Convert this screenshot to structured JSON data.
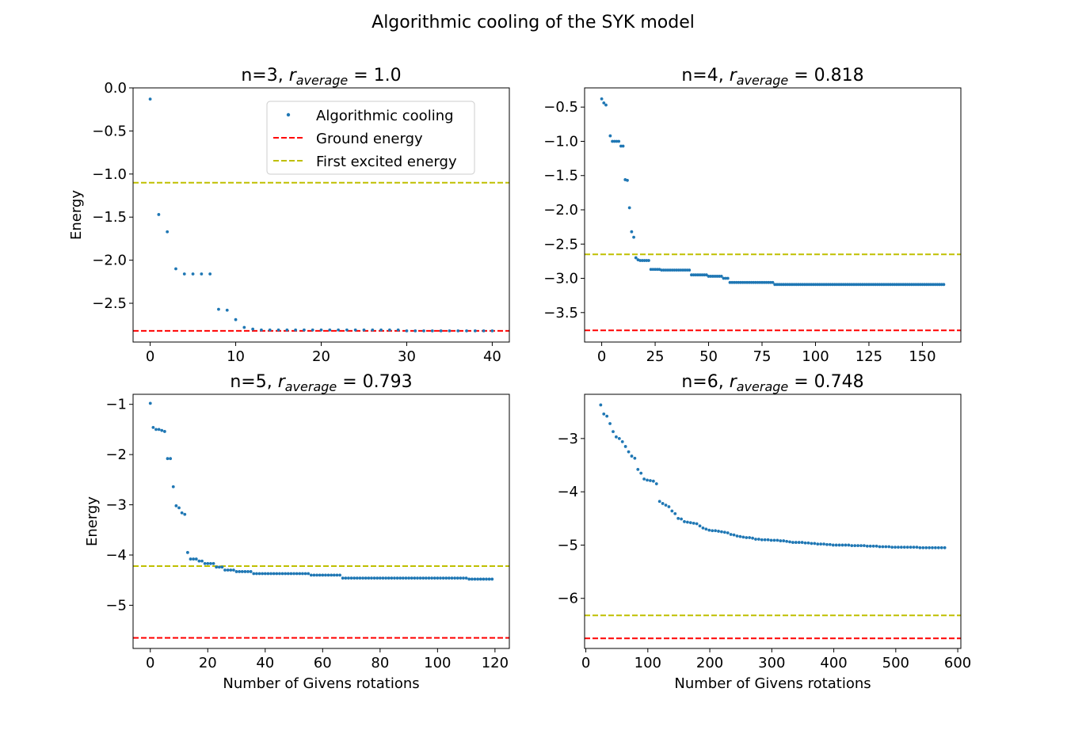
{
  "suptitle": "Algorithmic cooling of the SYK model",
  "legend": {
    "entries": [
      {
        "label": "Algorithmic cooling",
        "kind": "marker",
        "color": "#1f77b4"
      },
      {
        "label": "Ground energy",
        "kind": "dashed",
        "color": "#ff0000"
      },
      {
        "label": "First excited energy",
        "kind": "dashed",
        "color": "#bfbf00"
      }
    ],
    "placement": "upper-right of first panel"
  },
  "chart_data": [
    {
      "type": "scatter",
      "title_prefix": "n=3, ",
      "title_r_sub": "average",
      "title_value": "1.0",
      "xlabel": "",
      "ylabel": "Energy",
      "xlim": [
        -2,
        42
      ],
      "ylim": [
        -2.95,
        0
      ],
      "xticks": [
        0,
        10,
        20,
        30,
        40
      ],
      "yticks": [
        0.0,
        -0.5,
        -1.0,
        -1.5,
        -2.0,
        -2.5
      ],
      "ytick_decimals": 1,
      "ground_energy": -2.82,
      "first_excited_energy": -1.1,
      "x": [
        0,
        1,
        2,
        3,
        4,
        5,
        6,
        7,
        8,
        9,
        10,
        11,
        12,
        13,
        14,
        15,
        16,
        17,
        18,
        19,
        20,
        21,
        22,
        23,
        24,
        25,
        26,
        27,
        28,
        29,
        30,
        31,
        32,
        33,
        34,
        35,
        36,
        37,
        38,
        39,
        40
      ],
      "y": [
        -0.13,
        -1.47,
        -1.67,
        -2.1,
        -2.16,
        -2.16,
        -2.16,
        -2.16,
        -2.57,
        -2.58,
        -2.69,
        -2.78,
        -2.8,
        -2.81,
        -2.81,
        -2.81,
        -2.81,
        -2.81,
        -2.81,
        -2.81,
        -2.81,
        -2.81,
        -2.81,
        -2.81,
        -2.81,
        -2.81,
        -2.81,
        -2.81,
        -2.81,
        -2.81,
        -2.82,
        -2.82,
        -2.82,
        -2.82,
        -2.82,
        -2.82,
        -2.82,
        -2.82,
        -2.82,
        -2.82,
        -2.82
      ]
    },
    {
      "type": "scatter",
      "title_prefix": "n=4, ",
      "title_r_sub": "average",
      "title_value": "0.818",
      "xlabel": "",
      "ylabel": "",
      "xlim": [
        -8,
        168
      ],
      "ylim": [
        -3.93,
        -0.22
      ],
      "xticks": [
        0,
        25,
        50,
        75,
        100,
        125,
        150
      ],
      "yticks": [
        -0.5,
        -1.0,
        -1.5,
        -2.0,
        -2.5,
        -3.0,
        -3.5
      ],
      "ytick_decimals": 1,
      "ground_energy": -3.76,
      "first_excited_energy": -2.65,
      "steps": [
        {
          "from": 0,
          "to": 0,
          "value": -0.38
        },
        {
          "from": 1,
          "to": 1,
          "value": -0.44
        },
        {
          "from": 2,
          "to": 2,
          "value": -0.47
        },
        {
          "from": 4,
          "to": 4,
          "value": -0.92
        },
        {
          "from": 5,
          "to": 8,
          "value": -1.0
        },
        {
          "from": 9,
          "to": 10,
          "value": -1.07
        },
        {
          "from": 11,
          "to": 11,
          "value": -1.56
        },
        {
          "from": 12,
          "to": 12,
          "value": -1.57
        },
        {
          "from": 13,
          "to": 13,
          "value": -1.97
        },
        {
          "from": 14,
          "to": 14,
          "value": -2.32
        },
        {
          "from": 15,
          "to": 15,
          "value": -2.4
        },
        {
          "from": 16,
          "to": 16,
          "value": -2.7
        },
        {
          "from": 17,
          "to": 17,
          "value": -2.73
        },
        {
          "from": 18,
          "to": 22,
          "value": -2.74
        },
        {
          "from": 23,
          "to": 27,
          "value": -2.87
        },
        {
          "from": 28,
          "to": 41,
          "value": -2.88
        },
        {
          "from": 42,
          "to": 49,
          "value": -2.95
        },
        {
          "from": 50,
          "to": 56,
          "value": -2.97
        },
        {
          "from": 57,
          "to": 59,
          "value": -3.0
        },
        {
          "from": 60,
          "to": 80,
          "value": -3.06
        },
        {
          "from": 81,
          "to": 160,
          "value": -3.09
        }
      ]
    },
    {
      "type": "scatter",
      "title_prefix": "n=5, ",
      "title_r_sub": "average",
      "title_value": "0.793",
      "xlabel": "Number of Givens rotations",
      "ylabel": "Energy",
      "xlim": [
        -6,
        125
      ],
      "ylim": [
        -5.86,
        -0.8
      ],
      "xticks": [
        0,
        20,
        40,
        60,
        80,
        100,
        120
      ],
      "yticks": [
        -1,
        -2,
        -3,
        -4,
        -5
      ],
      "ytick_decimals": 0,
      "ground_energy": -5.65,
      "first_excited_energy": -4.22,
      "steps": [
        {
          "from": 0,
          "to": 0,
          "value": -0.98
        },
        {
          "from": 1,
          "to": 1,
          "value": -1.46
        },
        {
          "from": 2,
          "to": 3,
          "value": -1.5
        },
        {
          "from": 4,
          "to": 4,
          "value": -1.52
        },
        {
          "from": 5,
          "to": 5,
          "value": -1.54
        },
        {
          "from": 6,
          "to": 7,
          "value": -2.08
        },
        {
          "from": 8,
          "to": 8,
          "value": -2.64
        },
        {
          "from": 9,
          "to": 9,
          "value": -3.02
        },
        {
          "from": 10,
          "to": 10,
          "value": -3.06
        },
        {
          "from": 11,
          "to": 11,
          "value": -3.16
        },
        {
          "from": 12,
          "to": 12,
          "value": -3.19
        },
        {
          "from": 13,
          "to": 13,
          "value": -3.95
        },
        {
          "from": 14,
          "to": 16,
          "value": -4.08
        },
        {
          "from": 17,
          "to": 18,
          "value": -4.12
        },
        {
          "from": 19,
          "to": 22,
          "value": -4.17
        },
        {
          "from": 23,
          "to": 25,
          "value": -4.24
        },
        {
          "from": 26,
          "to": 29,
          "value": -4.3
        },
        {
          "from": 30,
          "to": 35,
          "value": -4.33
        },
        {
          "from": 36,
          "to": 55,
          "value": -4.37
        },
        {
          "from": 56,
          "to": 66,
          "value": -4.4
        },
        {
          "from": 67,
          "to": 110,
          "value": -4.46
        },
        {
          "from": 111,
          "to": 119,
          "value": -4.48
        }
      ]
    },
    {
      "type": "scatter",
      "title_prefix": "n=6, ",
      "title_r_sub": "average",
      "title_value": "0.748",
      "xlabel": "Number of Givens rotations",
      "ylabel": "",
      "xlim": [
        -2,
        605
      ],
      "ylim": [
        -6.94,
        -2.17
      ],
      "xticks": [
        0,
        100,
        200,
        300,
        400,
        500,
        600
      ],
      "yticks": [
        -3,
        -4,
        -5,
        -6
      ],
      "ytick_decimals": 0,
      "ground_energy": -6.75,
      "first_excited_energy": -6.32,
      "x": [
        24,
        29,
        34,
        39,
        44,
        49,
        54,
        59,
        64,
        69,
        74,
        79,
        84,
        89,
        94,
        99,
        104,
        109,
        114,
        119,
        124,
        129,
        134,
        139,
        144,
        149,
        154,
        159,
        164,
        169,
        174,
        179,
        184,
        189,
        194,
        199,
        204,
        209,
        214,
        219,
        224,
        229,
        234,
        239,
        244,
        249,
        254,
        259,
        264,
        269,
        274,
        279,
        284,
        289,
        294,
        299,
        304,
        309,
        314,
        319,
        324,
        329,
        334,
        339,
        344,
        349,
        354,
        359,
        364,
        369,
        374,
        379,
        384,
        389,
        394,
        399,
        404,
        409,
        414,
        419,
        424,
        429,
        434,
        439,
        444,
        449,
        454,
        459,
        464,
        469,
        474,
        479,
        484,
        489,
        494,
        499,
        504,
        509,
        514,
        519,
        524,
        529,
        534,
        539,
        544,
        549,
        554,
        559,
        564,
        569,
        574,
        579
      ],
      "y": [
        -2.37,
        -2.54,
        -2.58,
        -2.72,
        -2.87,
        -2.97,
        -3.0,
        -3.06,
        -3.15,
        -3.25,
        -3.33,
        -3.37,
        -3.58,
        -3.65,
        -3.76,
        -3.78,
        -3.79,
        -3.8,
        -3.85,
        -4.18,
        -4.22,
        -4.25,
        -4.28,
        -4.36,
        -4.41,
        -4.5,
        -4.51,
        -4.56,
        -4.57,
        -4.58,
        -4.59,
        -4.6,
        -4.64,
        -4.68,
        -4.7,
        -4.72,
        -4.73,
        -4.73,
        -4.74,
        -4.75,
        -4.76,
        -4.77,
        -4.8,
        -4.81,
        -4.83,
        -4.84,
        -4.85,
        -4.86,
        -4.86,
        -4.87,
        -4.89,
        -4.89,
        -4.9,
        -4.9,
        -4.9,
        -4.91,
        -4.91,
        -4.91,
        -4.92,
        -4.92,
        -4.93,
        -4.94,
        -4.95,
        -4.95,
        -4.95,
        -4.95,
        -4.96,
        -4.96,
        -4.97,
        -4.97,
        -4.98,
        -4.98,
        -4.98,
        -4.99,
        -4.99,
        -5.0,
        -5.0,
        -5.0,
        -5.0,
        -5.0,
        -5.0,
        -5.01,
        -5.01,
        -5.01,
        -5.01,
        -5.01,
        -5.02,
        -5.02,
        -5.02,
        -5.02,
        -5.03,
        -5.03,
        -5.03,
        -5.03,
        -5.04,
        -5.04,
        -5.04,
        -5.04,
        -5.04,
        -5.04,
        -5.04,
        -5.04,
        -5.04,
        -5.05,
        -5.05,
        -5.05,
        -5.05,
        -5.05,
        -5.05,
        -5.05,
        -5.05,
        -5.05
      ]
    }
  ]
}
